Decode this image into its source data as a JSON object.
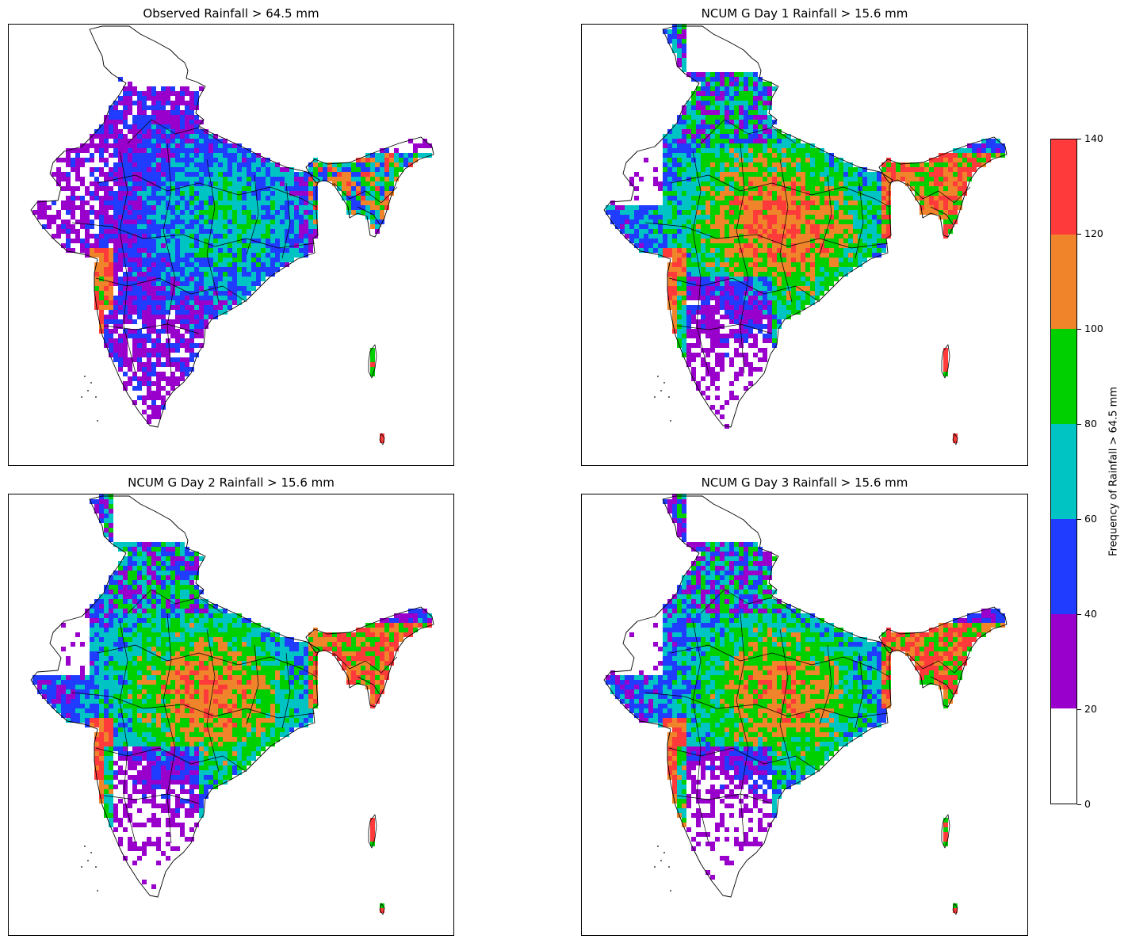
{
  "panels": [
    {
      "title": "Observed Rainfall > 64.5 mm",
      "variant": "obs"
    },
    {
      "title": "NCUM G Day 1 Rainfall > 15.6 mm",
      "variant": "d1"
    },
    {
      "title": "NCUM G Day 2 Rainfall > 15.6 mm",
      "variant": "d2"
    },
    {
      "title": "NCUM G Day 3 Rainfall > 15.6 mm",
      "variant": "d3"
    }
  ],
  "colorbar": {
    "label": "Frequency of Rainfall > 64.5 mm",
    "ticks": [
      "0",
      "20",
      "40",
      "60",
      "80",
      "100",
      "120",
      "140"
    ],
    "bins": [
      {
        "min": 0,
        "max": 20,
        "color": "#ffffff"
      },
      {
        "min": 20,
        "max": 40,
        "color": "#9900cc"
      },
      {
        "min": 40,
        "max": 60,
        "color": "#1f3cff"
      },
      {
        "min": 60,
        "max": 80,
        "color": "#00c4c4"
      },
      {
        "min": 80,
        "max": 100,
        "color": "#00d000"
      },
      {
        "min": 100,
        "max": 120,
        "color": "#f0842a"
      },
      {
        "min": 120,
        "max": 140,
        "color": "#ff3a3a"
      }
    ]
  }
}
